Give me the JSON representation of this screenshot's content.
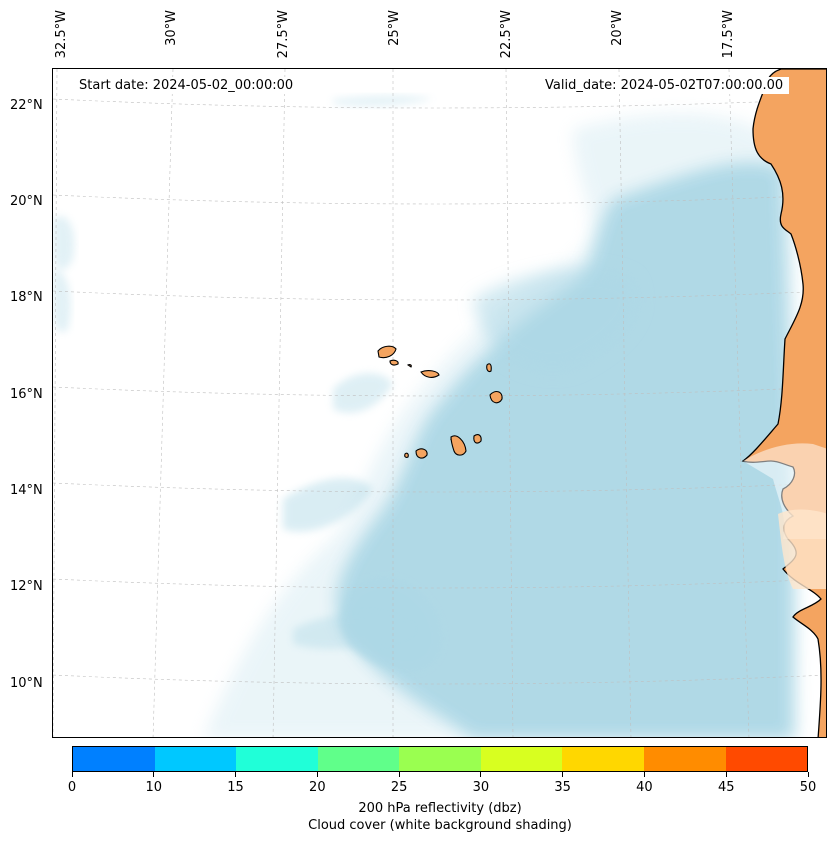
{
  "map": {
    "start_date": "Start date: 2024-05-02_00:00:00",
    "valid_date": "Valid_date: 2024-05-02T07:00:00.00",
    "longitude_labels": [
      "32.5°W",
      "30°W",
      "27.5°W",
      "25°W",
      "22.5°W",
      "20°W",
      "17.5°W"
    ],
    "latitude_labels": [
      "22°N",
      "20°N",
      "18°N",
      "16°N",
      "14°N",
      "12°N",
      "10°N"
    ],
    "colors": {
      "land": "#f4a460",
      "cloud": "#add8e6",
      "coastline": "#000000"
    }
  },
  "colorbar": {
    "ticks": [
      "0",
      "10",
      "15",
      "20",
      "25",
      "30",
      "35",
      "40",
      "45",
      "50"
    ],
    "colors": [
      "#0080ff",
      "#00c8ff",
      "#20ffd8",
      "#60ff8a",
      "#9aff50",
      "#d8ff20",
      "#ffd700",
      "#ff8c00",
      "#ff4a00"
    ],
    "label_line1": "200 hPa reflectivity (dbz)",
    "label_line2": "Cloud cover (white background shading)"
  }
}
